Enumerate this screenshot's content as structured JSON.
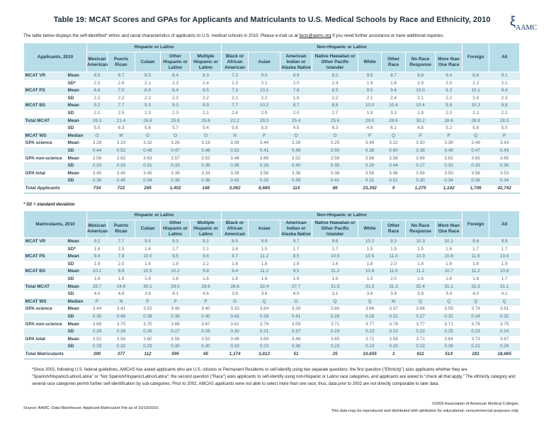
{
  "title": "Table 19: MCAT Scores and GPAs for Applicants and Matriculants to U.S. Medical Schools by Race and Ethnicity, 2010",
  "logo_text": "AAMC",
  "subtitle_pre": "The table below displays the self-identified* ethnic and racial characteristics of applicants to U.S. medical schools in 2010.  Please e-mail us at ",
  "subtitle_link": "facts@aamc.org",
  "subtitle_post": " if you need further assistance or have additional inquiries.",
  "groups": {
    "hispanic": "Hispanic or Latino",
    "non_hispanic": "Non-Hispanic or Latino"
  },
  "columns": [
    "Mexican American",
    "Puerto Rican",
    "Cuban",
    "Other Hispanic or Latino",
    "Multiple Hispanic or Latino",
    "Black or African American",
    "Asian",
    "American Indian or Alaska Native",
    "Native Hawaiian or Other Pacific Islander",
    "White",
    "Other Race",
    "No Race Response",
    "More than One Race",
    "Foreign",
    "All"
  ],
  "colors": {
    "header_bg": "#b7dde8",
    "row_shade": "#dbeef3"
  },
  "applicants": {
    "caption": "Applicants, 2010",
    "total_label": "Total Applicants",
    "rows": [
      {
        "label": "MCAT VR",
        "stat": "Mean",
        "values": [
          "8.5",
          "6.7",
          "8.5",
          "8.4",
          "8.3",
          "7.2",
          "9.0",
          "8.9",
          "8.2",
          "9.5",
          "8.7",
          "9.8",
          "9.4",
          "8.6",
          "9.1"
        ]
      },
      {
        "label": "",
        "stat": "SD*",
        "values": [
          "2.2",
          "2.6",
          "2.1",
          "2.3",
          "2.4",
          "2.3",
          "2.1",
          "2.0",
          "2.4",
          "1.9",
          "1.6",
          "1.9",
          "2.0",
          "2.2",
          "2.1"
        ]
      },
      {
        "label": "MCAT PS",
        "stat": "Mean",
        "values": [
          "8.6",
          "7.0",
          "8.8",
          "8.4",
          "8.5",
          "7.3",
          "10.1",
          "7.8",
          "8.5",
          "9.5",
          "9.4",
          "10.0",
          "9.3",
          "10.1",
          "9.4"
        ]
      },
      {
        "label": "",
        "stat": "SD",
        "values": [
          "2.2",
          "2.2",
          "2.2",
          "2.2",
          "2.2",
          "2.1",
          "2.2",
          "1.9",
          "2.2",
          "2.1",
          "2.4",
          "2.1",
          "2.2",
          "2.4",
          "2.3"
        ]
      },
      {
        "label": "MCAT BS",
        "stat": "Mean",
        "values": [
          "9.2",
          "7.7",
          "9.3",
          "9.0",
          "8.9",
          "7.7",
          "10.2",
          "8.7",
          "8.8",
          "10.0",
          "10.4",
          "10.4",
          "9.9",
          "10.3",
          "9.8"
        ]
      },
      {
        "label": "",
        "stat": "SD",
        "values": [
          "2.1",
          "2.5",
          "2.3",
          "2.3",
          "2.1",
          "2.4",
          "2.0",
          "2.0",
          "2.7",
          "1.9",
          "3.3",
          "1.9",
          "2.0",
          "2.2",
          "2.1"
        ]
      },
      {
        "label": "Total MCAT",
        "stat": "Mean",
        "values": [
          "26.3",
          "21.4",
          "26.6",
          "25.8",
          "25.6",
          "22.2",
          "29.3",
          "25.4",
          "25.6",
          "29.0",
          "28.6",
          "30.2",
          "28.6",
          "28.9",
          "28.3"
        ]
      },
      {
        "label": "",
        "stat": "SD",
        "values": [
          "5.5",
          "6.3",
          "5.6",
          "5.7",
          "5.4",
          "5.8",
          "5.3",
          "4.5",
          "6.3",
          "4.8",
          "6.1",
          "4.8",
          "5.2",
          "5.8",
          "5.5"
        ]
      },
      {
        "label": "MCAT WS",
        "stat": "Median",
        "values": [
          "O",
          "M",
          "O",
          "O",
          "O",
          "N",
          "P",
          "O",
          "O",
          "P",
          "Q",
          "P",
          "P",
          "Q",
          "P"
        ]
      },
      {
        "label": "GPA science",
        "stat": "Mean",
        "values": [
          "3.28",
          "3.23",
          "3.32",
          "3.26",
          "3.19",
          "3.08",
          "3.44",
          "3.28",
          "3.25",
          "3.49",
          "3.22",
          "3.50",
          "3.39",
          "3.49",
          "3.43"
        ]
      },
      {
        "label": "",
        "stat": "SD",
        "values": [
          "0.44",
          "0.52",
          "0.48",
          "0.47",
          "0.46",
          "0.52",
          "0.41",
          "0.48",
          "0.50",
          "0.38",
          "0.60",
          "0.38",
          "0.48",
          "0.47",
          "0.43"
        ]
      },
      {
        "label": "GPA non-science",
        "stat": "Mean",
        "values": [
          "3.56",
          "3.62",
          "3.63",
          "3.57",
          "3.53",
          "3.48",
          "3.66",
          "3.52",
          "3.58",
          "3.68",
          "3.58",
          "3.69",
          "3.62",
          "3.65",
          "3.65"
        ]
      },
      {
        "label": "",
        "stat": "SD",
        "values": [
          "0.33",
          "0.33",
          "0.31",
          "0.33",
          "0.38",
          "0.36",
          "0.29",
          "0.40",
          "0.35",
          "0.29",
          "0.44",
          "0.27",
          "0.32",
          "0.33",
          "0.30"
        ]
      },
      {
        "label": "GPA total",
        "stat": "Mean",
        "values": [
          "3.40",
          "3.40",
          "3.45",
          "3.39",
          "3.34",
          "3.26",
          "3.58",
          "3.38",
          "3.38",
          "3.58",
          "3.36",
          "3.59",
          "3.50",
          "3.56",
          "3.53"
        ]
      },
      {
        "label": "",
        "stat": "SD",
        "values": [
          "0.36",
          "0.40",
          "0.34",
          "0.38",
          "0.38",
          "0.42",
          "0.33",
          "0.39",
          "0.41",
          "0.31",
          "0.51",
          "0.30",
          "0.34",
          "0.38",
          "0.34"
        ]
      }
    ],
    "totals": [
      "734",
      "722",
      "265",
      "1,402",
      "148",
      "3,062",
      "8,685",
      "114",
      "86",
      "23,392",
      "9",
      "1,275",
      "1,142",
      "1,706",
      "42,742"
    ]
  },
  "sd_note": "* SD = standard deviation",
  "matriculants": {
    "caption": "Matriculants, 2010",
    "total_label": "Total Matriculants",
    "rows": [
      {
        "label": "MCAT VR",
        "stat": "Mean",
        "values": [
          "9.2",
          "7.7",
          "9.5",
          "9.3",
          "9.1",
          "8.5",
          "9.9",
          "9.7",
          "9.8",
          "10.2",
          "9.3",
          "10.3",
          "10.1",
          "9.6",
          "9.9"
        ]
      },
      {
        "label": "",
        "stat": "SD*",
        "values": [
          "1.8",
          "2.3",
          "1.6",
          "1.7",
          "2.1",
          "1.8",
          "1.5",
          "1.7",
          "1.7",
          "1.5",
          "1.5",
          "1.5",
          "1.6",
          "1.7",
          "1.7"
        ]
      },
      {
        "label": "MCAT PS",
        "stat": "Mean",
        "values": [
          "9.4",
          "7.9",
          "10.0",
          "9.5",
          "9.6",
          "8.7",
          "11.2",
          "8.5",
          "10.5",
          "10.5",
          "11.0",
          "10.9",
          "10.8",
          "11.5",
          "10.4"
        ]
      },
      {
        "label": "",
        "stat": "SD",
        "values": [
          "1.9",
          "2.0",
          "1.8",
          "1.9",
          "2.2",
          "1.8",
          "1.8",
          "1.9",
          "1.6",
          "1.8",
          "2.0",
          "1.8",
          "1.9",
          "1.8",
          "1.9"
        ]
      },
      {
        "label": "MCAT BS",
        "stat": "Mean",
        "values": [
          "10.1",
          "8.9",
          "10.5",
          "10.2",
          "9.8",
          "9.4",
          "11.2",
          "9.5",
          "11.2",
          "10.9",
          "11.0",
          "11.1",
          "10.7",
          "11.2",
          "10.8"
        ]
      },
      {
        "label": "",
        "stat": "SD",
        "values": [
          "1.6",
          "1.9",
          "1.6",
          "1.6",
          "1.6",
          "1.6",
          "1.6",
          "1.9",
          "1.6",
          "1.5",
          "2.0",
          "1.6",
          "1.6",
          "1.6",
          "1.7"
        ]
      },
      {
        "label": "Total MCAT",
        "stat": "Mean",
        "values": [
          "28.7",
          "24.6",
          "30.1",
          "29.0",
          "28.6",
          "26.6",
          "32.4",
          "27.7",
          "31.5",
          "31.5",
          "31.3",
          "32.4",
          "31.1",
          "32.3",
          "31.1"
        ]
      },
      {
        "label": "",
        "stat": "SD",
        "values": [
          "4.0",
          "4.9",
          "3.8",
          "4.1",
          "4.6",
          "3.9",
          "3.6",
          "4.0",
          "3.1",
          "3.6",
          "3.8",
          "3.8",
          "3.9",
          "4.0",
          "4.1"
        ]
      },
      {
        "label": "MCAT WS",
        "stat": "Median",
        "values": [
          "P",
          "N",
          "P",
          "P",
          "P",
          "O",
          "Q",
          "O",
          "Q",
          "Q",
          "M",
          "Q",
          "Q",
          "Q",
          "Q"
        ]
      },
      {
        "label": "GPA science",
        "stat": "Mean",
        "values": [
          "3.44",
          "3.41",
          "3.52",
          "3.46",
          "3.40",
          "3.33",
          "3.64",
          "3.39",
          "3.60",
          "3.66",
          "3.37",
          "3.66",
          "3.59",
          "3.74",
          "3.61"
        ]
      },
      {
        "label": "",
        "stat": "SD",
        "values": [
          "0.35",
          "0.48",
          "0.36",
          "0.38",
          "0.40",
          "0.42",
          "0.29",
          "0.41",
          "0.29",
          "0.28",
          "0.32",
          "0.27",
          "0.32",
          "0.24",
          "0.32"
        ]
      },
      {
        "label": "GPA non-science",
        "stat": "Mean",
        "values": [
          "3.68",
          "3.70",
          "3.70",
          "3.68",
          "3.67",
          "3.61",
          "3.76",
          "3.59",
          "3.71",
          "3.77",
          "3.78",
          "3.77",
          "3.71",
          "3.76",
          "3.75"
        ]
      },
      {
        "label": "",
        "stat": "SD",
        "values": [
          "0.29",
          "0.26",
          "0.26",
          "0.27",
          "0.26",
          "0.30",
          "0.21",
          "0.37",
          "0.24",
          "0.23",
          "0.10",
          "0.22",
          "0.25",
          "0.23",
          "0.24"
        ]
      },
      {
        "label": "GPA total",
        "stat": "Mean",
        "values": [
          "3.52",
          "3.54",
          "3.60",
          "3.56",
          "3.52",
          "3.46",
          "3.69",
          "3.48",
          "3.65",
          "3.71",
          "3.58",
          "3.71",
          "3.64",
          "3.73",
          "3.67"
        ]
      },
      {
        "label": "",
        "stat": "SD",
        "values": [
          "0.29",
          "0.32",
          "0.29",
          "0.30",
          "0.30",
          "0.33",
          "0.23",
          "0.36",
          "0.23",
          "0.23",
          "0.20",
          "0.22",
          "0.26",
          "0.21",
          "0.26"
        ]
      }
    ],
    "totals": [
      "390",
      "377",
      "112",
      "595",
      "65",
      "1,174",
      "3,812",
      "51",
      "25",
      "10,655",
      "3",
      "611",
      "514",
      "281",
      "18,665"
    ]
  },
  "footnote": "*Since 2002, following U.S. federal guidelines, AMCAS has asked applicants who are U.S. citizens or Permanent Residents to self-identify using two separate questions: the first question (\"Ethnicity\") asks applicants whether they are \"Spanish/Hispanic/Latino/Latina\" or \"Not Spanish/Hispanic/Latino/Latina\"; the second question (\"Race\") asks applicants to self-identify using non-Hispanic or Latino race categories, and applicants are asked to \"check all that apply.\" The ethnicity category and several race categories permit further self-identification by sub-categories. Prior to 2002, AMCAS applicants were not able to select more than one race; thus, data prior to 2002 are not directly comparable to later data.",
  "source": "Source: AAMC: Data Warehouse: Applicant Matriculant File as of 10/19/2010.",
  "copyright": "©2009 Association of American Medical Colleges.",
  "usage": "This data may be reproduced and distributed with attribution for educational, noncommercial purposes only."
}
